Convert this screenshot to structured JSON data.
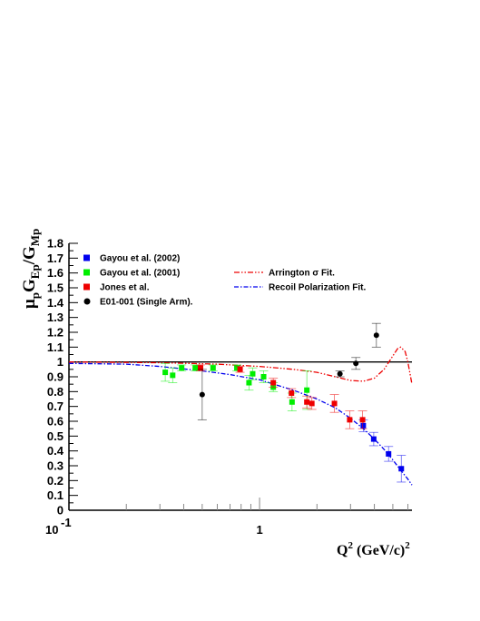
{
  "chart_data": {
    "type": "scatter",
    "x_scale": "log",
    "xlim": [
      0.1,
      6.3
    ],
    "ylim": [
      0,
      1.8
    ],
    "y_ticks": [
      "0",
      "0.1",
      "0.2",
      "0.3",
      "0.4",
      "0.5",
      "0.6",
      "0.7",
      "0.8",
      "0.9",
      "1",
      "1.1",
      "1.2",
      "1.3",
      "1.4",
      "1.5",
      "1.6",
      "1.7",
      "1.8"
    ],
    "x_tick_labels": {
      "base": "10",
      "exponent": "-1",
      "one": "1"
    },
    "ylabel": {
      "mu": "μ",
      "p": "p",
      "G": "G",
      "Ep": "Ep",
      "slash": "/",
      "Mp": "Mp"
    },
    "xlabel": {
      "Q": "Q",
      "power": "2",
      "units": "(GeV/c)",
      "units_power": "2"
    },
    "legend_position": "top-left",
    "reference_line_y": 1,
    "series": [
      {
        "name": "Gayou et al. (2002)",
        "color": "#0000ee",
        "marker": "square",
        "points": [
          {
            "x": 3.5,
            "y": 0.57,
            "err": 0.04
          },
          {
            "x": 3.97,
            "y": 0.48,
            "err": 0.045
          },
          {
            "x": 4.75,
            "y": 0.38,
            "err": 0.05
          },
          {
            "x": 5.54,
            "y": 0.28,
            "err": 0.09
          }
        ]
      },
      {
        "name": "Gayou et al. (2001)",
        "color": "#00ee00",
        "marker": "square",
        "points": [
          {
            "x": 0.32,
            "y": 0.93,
            "err": 0.06
          },
          {
            "x": 0.35,
            "y": 0.91,
            "err": 0.05
          },
          {
            "x": 0.39,
            "y": 0.96,
            "err": 0.02
          },
          {
            "x": 0.46,
            "y": 0.96,
            "err": 0.02
          },
          {
            "x": 0.57,
            "y": 0.96,
            "err": 0.02
          },
          {
            "x": 0.76,
            "y": 0.96,
            "err": 0.02
          },
          {
            "x": 0.88,
            "y": 0.86,
            "err": 0.05
          },
          {
            "x": 0.92,
            "y": 0.92,
            "err": 0.04
          },
          {
            "x": 1.05,
            "y": 0.9,
            "err": 0.04
          },
          {
            "x": 1.18,
            "y": 0.83,
            "err": 0.03
          },
          {
            "x": 1.48,
            "y": 0.73,
            "err": 0.06
          },
          {
            "x": 1.77,
            "y": 0.81,
            "err": 0.13
          }
        ]
      },
      {
        "name": "Jones et al.",
        "color": "#ee0000",
        "marker": "square",
        "points": [
          {
            "x": 0.49,
            "y": 0.96,
            "err": 0.02
          },
          {
            "x": 0.79,
            "y": 0.95,
            "err": 0.02
          },
          {
            "x": 1.18,
            "y": 0.86,
            "err": 0.03
          },
          {
            "x": 1.47,
            "y": 0.79,
            "err": 0.03
          },
          {
            "x": 1.77,
            "y": 0.73,
            "err": 0.04
          },
          {
            "x": 1.88,
            "y": 0.72,
            "err": 0.04
          },
          {
            "x": 2.47,
            "y": 0.72,
            "err": 0.06
          },
          {
            "x": 2.97,
            "y": 0.61,
            "err": 0.06
          },
          {
            "x": 3.47,
            "y": 0.61,
            "err": 0.06
          }
        ]
      },
      {
        "name": "E01-001 (Single Arm).",
        "color": "#000000",
        "marker": "circle",
        "points": [
          {
            "x": 0.5,
            "y": 0.78,
            "err": 0.17
          },
          {
            "x": 2.64,
            "y": 0.92,
            "err": 0.02
          },
          {
            "x": 3.2,
            "y": 0.99,
            "err": 0.04
          },
          {
            "x": 4.1,
            "y": 1.18,
            "err": 0.08
          }
        ]
      }
    ],
    "fits": [
      {
        "name": "Arrington σ Fit.",
        "color": "#ee0000",
        "style": "dash-dot-dot",
        "points": [
          [
            0.1,
            1.0
          ],
          [
            0.3,
            0.995
          ],
          [
            0.6,
            0.985
          ],
          [
            1.0,
            0.97
          ],
          [
            1.5,
            0.95
          ],
          [
            2.0,
            0.93
          ],
          [
            2.5,
            0.9
          ],
          [
            3.0,
            0.875
          ],
          [
            3.5,
            0.87
          ],
          [
            4.0,
            0.89
          ],
          [
            4.5,
            0.95
          ],
          [
            5.0,
            1.04
          ],
          [
            5.3,
            1.09
          ],
          [
            5.5,
            1.1
          ],
          [
            5.8,
            1.07
          ],
          [
            6.0,
            1.0
          ],
          [
            6.3,
            0.85
          ]
        ]
      },
      {
        "name": "Recoil Polarization Fit.",
        "color": "#0000ee",
        "style": "dash-dot",
        "points": [
          [
            0.1,
            0.99
          ],
          [
            0.2,
            0.985
          ],
          [
            0.3,
            0.97
          ],
          [
            0.5,
            0.94
          ],
          [
            0.7,
            0.915
          ],
          [
            1.0,
            0.88
          ],
          [
            1.5,
            0.81
          ],
          [
            2.0,
            0.75
          ],
          [
            2.5,
            0.69
          ],
          [
            3.0,
            0.62
          ],
          [
            3.5,
            0.55
          ],
          [
            4.0,
            0.48
          ],
          [
            4.5,
            0.41
          ],
          [
            5.0,
            0.34
          ],
          [
            5.5,
            0.27
          ],
          [
            6.0,
            0.21
          ],
          [
            6.3,
            0.17
          ]
        ]
      }
    ]
  }
}
